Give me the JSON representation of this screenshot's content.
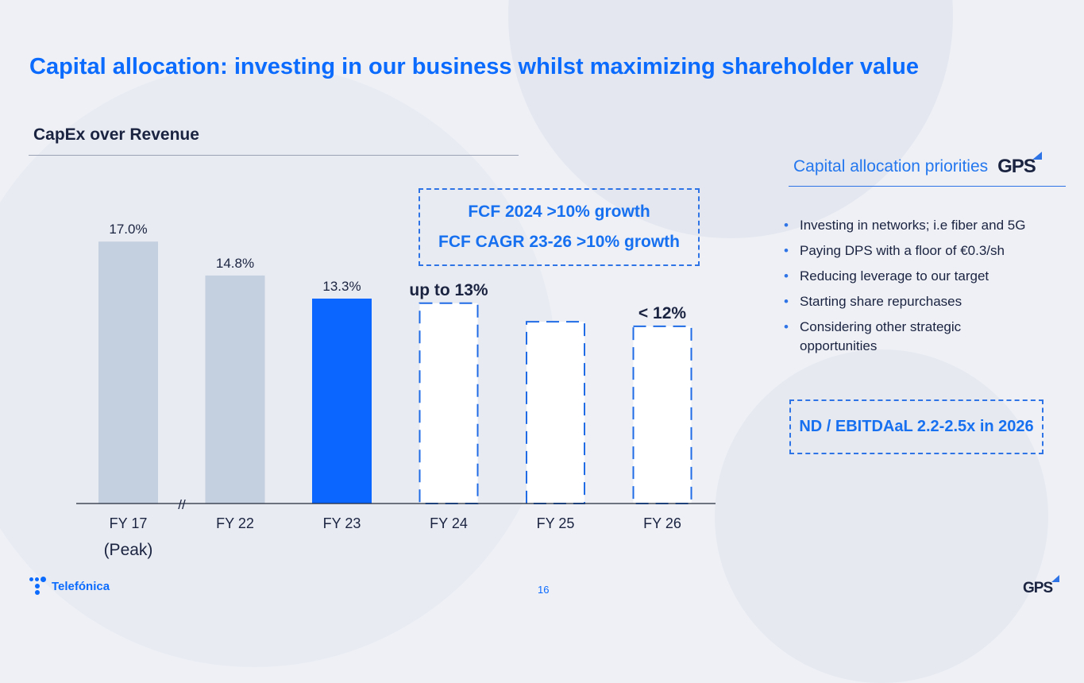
{
  "slide": {
    "title": "Capital allocation: investing in our business whilst maximizing shareholder value",
    "page_number": "16"
  },
  "chart_section": {
    "title": "CapEx over Revenue",
    "fcf_lines": [
      "FCF 2024 >10% growth",
      "FCF CAGR 23-26 >10% growth"
    ],
    "axis_break_marker": "//"
  },
  "chart_data": {
    "type": "bar",
    "title": "CapEx over Revenue",
    "unit": "%",
    "categories": [
      "FY 17",
      "FY 22",
      "FY 23",
      "FY 24",
      "FY 25",
      "FY 26"
    ],
    "category_sublabels": [
      "(Peak)",
      "",
      "",
      "",
      "",
      ""
    ],
    "values": [
      17.0,
      14.8,
      13.3,
      13.0,
      11.8,
      11.5
    ],
    "value_labels": [
      "17.0%",
      "14.8%",
      "13.3%",
      "up to 13%",
      "",
      "< 12%"
    ],
    "bar_styles": [
      "actual",
      "actual",
      "current",
      "target",
      "target",
      "target"
    ],
    "colors": {
      "actual": "#c4cfdf",
      "current": "#0b66ff",
      "target_border": "#1f6be6",
      "target_fill": "#ffffff"
    },
    "ylim": [
      0,
      21
    ],
    "grid": false,
    "legend": "none"
  },
  "priorities": {
    "title": "Capital allocation priorities",
    "logo_text": "GPS",
    "items": [
      "Investing in networks; i.e fiber and 5G",
      "Paying DPS with a floor of €0.3/sh",
      "Reducing leverage to our target",
      "Starting share repurchases",
      "Considering other strategic opportunities"
    ],
    "bullet_glyph": "•",
    "target_box": "ND / EBITDAaL 2.2-2.5x in 2026"
  },
  "footer": {
    "brand": "Telefónica",
    "logo_text": "GPS"
  }
}
